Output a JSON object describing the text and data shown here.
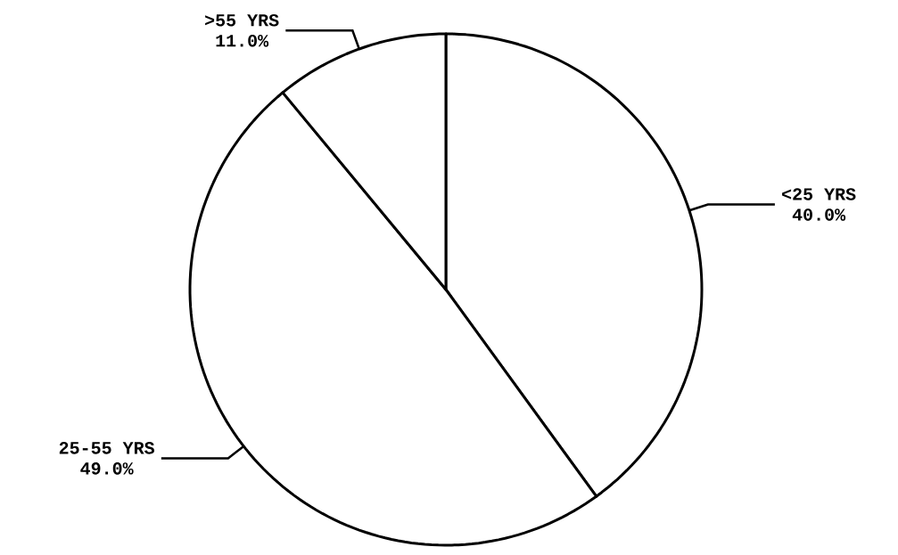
{
  "chart_data": {
    "type": "pie",
    "categories": [
      "<25 YRS",
      "25-55 YRS",
      ">55 YRS"
    ],
    "values": [
      40.0,
      49.0,
      11.0
    ],
    "value_labels": [
      "40.0%",
      "49.0%",
      "11.0%"
    ],
    "colors": [
      "#ffffff",
      "#ffffff",
      "#ffffff"
    ]
  }
}
